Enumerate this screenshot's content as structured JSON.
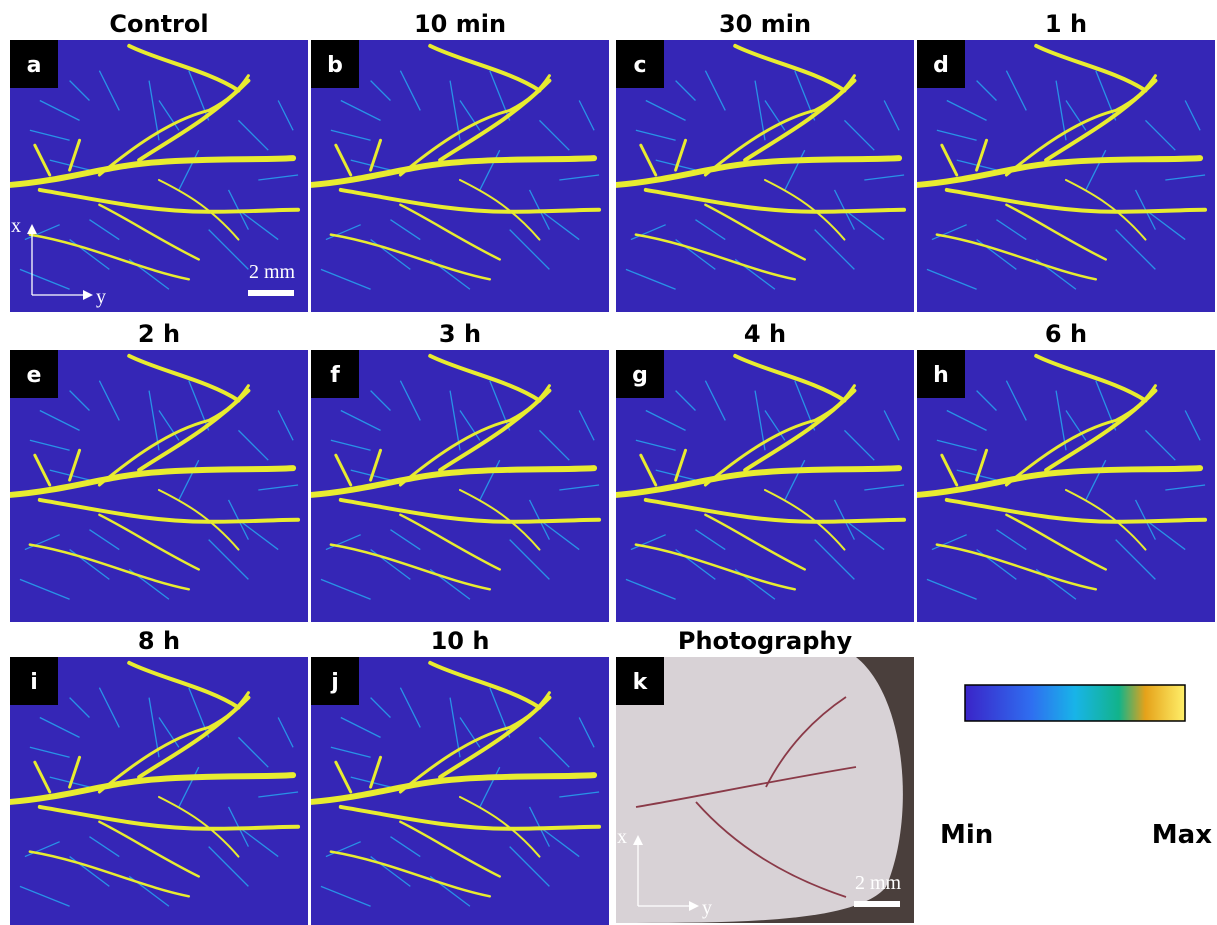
{
  "panels": [
    {
      "title": "Control",
      "letter": "a",
      "kind": "pa",
      "axis_x": "x",
      "axis_y": "y",
      "scale_bar": "2 mm"
    },
    {
      "title": "10 min",
      "letter": "b",
      "kind": "pa"
    },
    {
      "title": "30 min",
      "letter": "c",
      "kind": "pa"
    },
    {
      "title": "1 h",
      "letter": "d",
      "kind": "pa"
    },
    {
      "title": "2 h",
      "letter": "e",
      "kind": "pa"
    },
    {
      "title": "3 h",
      "letter": "f",
      "kind": "pa"
    },
    {
      "title": "4 h",
      "letter": "g",
      "kind": "pa"
    },
    {
      "title": "6 h",
      "letter": "h",
      "kind": "pa"
    },
    {
      "title": "8 h",
      "letter": "i",
      "kind": "pa"
    },
    {
      "title": "10 h",
      "letter": "j",
      "kind": "pa"
    },
    {
      "title": "Photography",
      "letter": "k",
      "kind": "photo",
      "axis_x": "x",
      "axis_y": "y",
      "scale_bar": "2 mm"
    }
  ],
  "colorbar": {
    "min_label": "Min",
    "max_label": "Max"
  }
}
